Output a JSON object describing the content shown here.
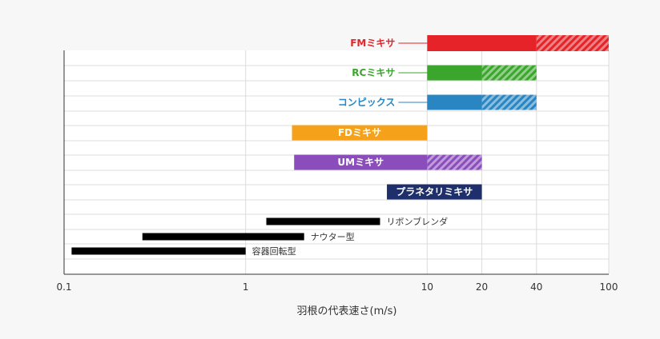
{
  "chart_data": {
    "type": "bar",
    "subtype": "range-bar (gantt) on logarithmic x-axis",
    "xlabel": "羽根の代表速さ(m/s)",
    "xscale": "log",
    "xlim": [
      0.1,
      100
    ],
    "xticks": [
      {
        "value": 0.1,
        "label": "0.1"
      },
      {
        "value": 1,
        "label": "1"
      },
      {
        "value": 10,
        "label": "10"
      },
      {
        "value": 20,
        "label": "20"
      },
      {
        "value": 40,
        "label": "40"
      },
      {
        "value": 100,
        "label": "100"
      }
    ],
    "grid": true,
    "series": [
      {
        "name": "FMミキサ",
        "style": "callout",
        "color": "#e52328",
        "segments": [
          {
            "from": 10,
            "to": 40,
            "pattern": "solid"
          },
          {
            "from": 40,
            "to": 100,
            "pattern": "hatched"
          }
        ]
      },
      {
        "name": "RCミキサ",
        "style": "callout",
        "color": "#3aa62c",
        "segments": [
          {
            "from": 10,
            "to": 20,
            "pattern": "solid"
          },
          {
            "from": 20,
            "to": 40,
            "pattern": "hatched"
          }
        ]
      },
      {
        "name": "コンピックス",
        "style": "callout",
        "color": "#2a86c2",
        "segments": [
          {
            "from": 10,
            "to": 20,
            "pattern": "solid"
          },
          {
            "from": 20,
            "to": 40,
            "pattern": "hatched"
          }
        ]
      },
      {
        "name": "FDミキサ",
        "style": "inside",
        "color": "#f5a21a",
        "segments": [
          {
            "from": 1.8,
            "to": 10,
            "pattern": "solid"
          }
        ]
      },
      {
        "name": "UMミキサ",
        "style": "inside",
        "color": "#8a4dbb",
        "segments": [
          {
            "from": 1.85,
            "to": 10,
            "pattern": "solid"
          },
          {
            "from": 10,
            "to": 20,
            "pattern": "hatched"
          }
        ]
      },
      {
        "name": "プラネタリミキサ",
        "style": "inside",
        "color": "#1e2f6b",
        "segments": [
          {
            "from": 6,
            "to": 20,
            "pattern": "solid"
          }
        ]
      },
      {
        "name": "リボンブレンダ",
        "style": "outside",
        "color": "#000000",
        "segments": [
          {
            "from": 1.3,
            "to": 5.5,
            "pattern": "solid"
          }
        ]
      },
      {
        "name": "ナウター型",
        "style": "outside",
        "color": "#000000",
        "segments": [
          {
            "from": 0.27,
            "to": 2.1,
            "pattern": "solid"
          }
        ]
      },
      {
        "name": "容器回転型",
        "style": "outside",
        "color": "#000000",
        "segments": [
          {
            "from": 0.11,
            "to": 1,
            "pattern": "solid"
          }
        ]
      }
    ]
  }
}
